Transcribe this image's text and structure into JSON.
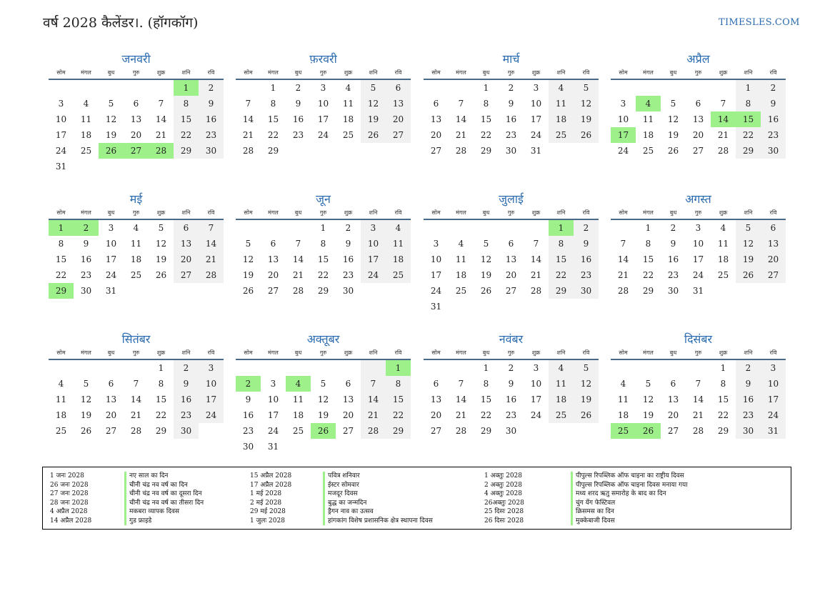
{
  "header": {
    "title": "वर्ष 2028 कैलेंडर।. (हॉगकॉग)",
    "site": "TIMESLES.COM"
  },
  "weekdays": [
    "सोम",
    "मंगल",
    "बुध",
    "गुरु",
    "शुक्र",
    "शनि",
    "रवि"
  ],
  "colors": {
    "accent": "#2b6cb0",
    "holiday": "#9ef08a",
    "weekend": "#f1f1f1"
  },
  "months": [
    {
      "name": "जनवरी",
      "start": 5,
      "days": 31,
      "holidays": [
        1,
        26,
        27,
        28
      ]
    },
    {
      "name": "फ़रवरी",
      "start": 1,
      "days": 29,
      "holidays": []
    },
    {
      "name": "मार्च",
      "start": 2,
      "days": 31,
      "holidays": []
    },
    {
      "name": "अप्रैल",
      "start": 5,
      "days": 30,
      "holidays": [
        4,
        14,
        15,
        17
      ]
    },
    {
      "name": "मई",
      "start": 0,
      "days": 31,
      "holidays": [
        1,
        2,
        29
      ]
    },
    {
      "name": "जून",
      "start": 3,
      "days": 30,
      "holidays": []
    },
    {
      "name": "जुलाई",
      "start": 5,
      "days": 31,
      "holidays": [
        1
      ]
    },
    {
      "name": "अगस्त",
      "start": 1,
      "days": 31,
      "holidays": []
    },
    {
      "name": "सितंबर",
      "start": 4,
      "days": 30,
      "holidays": []
    },
    {
      "name": "अक्तूबर",
      "start": 6,
      "days": 31,
      "holidays": [
        1,
        2,
        4,
        26
      ]
    },
    {
      "name": "नवंबर",
      "start": 2,
      "days": 30,
      "holidays": []
    },
    {
      "name": "दिसंबर",
      "start": 4,
      "days": 31,
      "holidays": [
        25,
        26
      ]
    }
  ],
  "holiday_list": [
    [
      {
        "date": "1 जनः 2028",
        "name": "नए साल का दिन"
      },
      {
        "date": "26 जनः 2028",
        "name": "चीनी चंद्र नव वर्ष का दिन"
      },
      {
        "date": "27 जनः 2028",
        "name": "चीनी चंद्र नव वर्ष का दूसरा दिन"
      },
      {
        "date": "28 जनः 2028",
        "name": "चीनी चंद्र नव वर्ष का तीसरा दिन"
      },
      {
        "date": "4 अप्रैल 2028",
        "name": "मकबरा व्यापक दिवस"
      },
      {
        "date": "14 अप्रैल 2028",
        "name": "गुड फ्राइडे"
      }
    ],
    [
      {
        "date": "15 अप्रैल 2028",
        "name": "पवित्र शनिवार"
      },
      {
        "date": "17 अप्रैल 2028",
        "name": "ईस्टर सोमवार"
      },
      {
        "date": "1 मई 2028",
        "name": "मजदूर दिवस"
      },
      {
        "date": "2 मई 2028",
        "name": "बुद्ध का जन्मदिन"
      },
      {
        "date": "29 मई 2028",
        "name": "ड्रैगन नाव का उत्सव"
      },
      {
        "date": "1 जुलः 2028",
        "name": "हांगकांग विशेष प्रशासनिक क्षेत्र स्थापना दिवस"
      }
    ],
    [
      {
        "date": "1 अक्तुः 2028",
        "name": "पीपुल्स रिपब्लिक ऑफ चाइना का राष्ट्रीय दिवस"
      },
      {
        "date": "2 अक्तुः 2028",
        "name": "पीपुल्स रिपब्लिक ऑफ चाइना दिवस मनाया गया"
      },
      {
        "date": "4 अक्तुः 2028",
        "name": "मध्य शरद ऋतु समारोह के बाद का दिन"
      },
      {
        "date": "26अक्तुः 2028",
        "name": "चुंग येंग फेस्टिवल"
      },
      {
        "date": "25 दिसः 2028",
        "name": "क्रिसमस का दिन"
      },
      {
        "date": "26 दिसः 2028",
        "name": "मुक्केबाजी दिवस"
      }
    ]
  ]
}
